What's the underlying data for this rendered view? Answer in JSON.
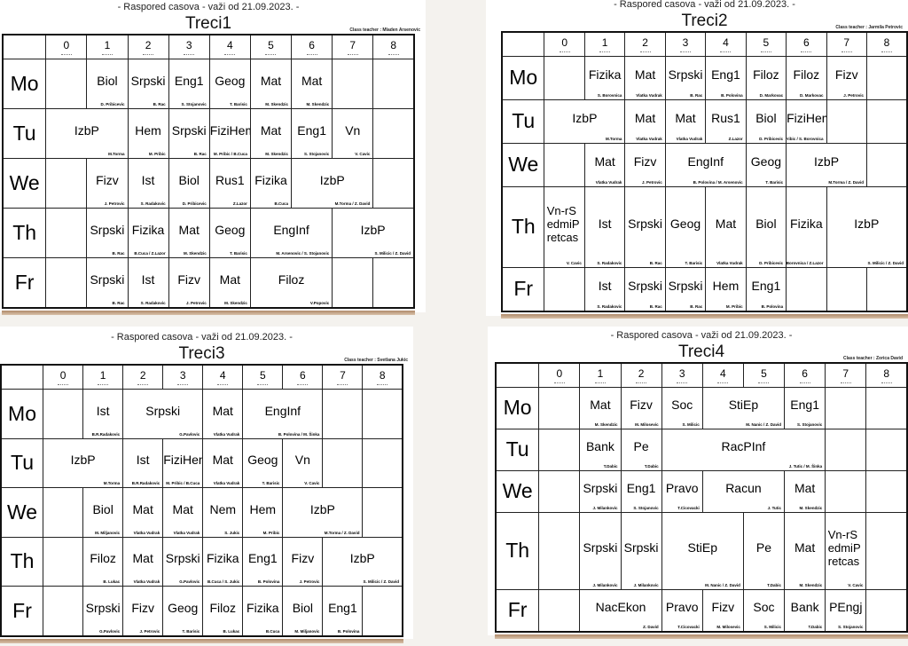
{
  "header_text": "-   Raspored casova - važi od 21.09.2023.   -",
  "class_teacher_prefix": "Class teacher : ",
  "periods": [
    "0",
    "1",
    "2",
    "3",
    "4",
    "5",
    "6",
    "7",
    "8"
  ],
  "days": [
    "Mo",
    "Tu",
    "We",
    "Th",
    "Fr"
  ],
  "timetables": [
    {
      "class_name": "Treci1",
      "class_teacher": "Mladen Arsenovic",
      "rows": [
        [
          [
            "",
            ""
          ],
          [
            "Biol",
            "D. Pribicevic"
          ],
          [
            "Srpski",
            "B. Rac"
          ],
          [
            "Eng1",
            "S. Stojanovic"
          ],
          [
            "Geog",
            "T. Barisic"
          ],
          [
            "Mat",
            "M. Skendzic"
          ],
          [
            "Mat",
            "M. Skendzic"
          ],
          [
            "",
            ""
          ],
          [
            "",
            ""
          ]
        ],
        [
          [
            "IzbP",
            "M.Torma",
            2
          ],
          [
            "Hem",
            "M. Pribic"
          ],
          [
            "Srpski",
            "B. Rac"
          ],
          [
            "FiziHemV",
            "M. Pribic / B.Cuca"
          ],
          [
            "Mat",
            "M. Skendzic"
          ],
          [
            "Eng1",
            "S. Stojanovic"
          ],
          [
            "Vn",
            "V. Cavic"
          ],
          [
            "",
            ""
          ]
        ],
        [
          [
            "",
            ""
          ],
          [
            "Fizv",
            "J. Petrovic"
          ],
          [
            "Ist",
            "S. Radakovic"
          ],
          [
            "Biol",
            "D. Pribicevic"
          ],
          [
            "Rus1",
            "Z.Lazor"
          ],
          [
            "Fizika",
            "B.Cuca"
          ],
          [
            "IzbP",
            "M.Torma / Z. David",
            2
          ],
          [
            "",
            ""
          ]
        ],
        [
          [
            "",
            ""
          ],
          [
            "Srpski",
            "B. Rac"
          ],
          [
            "Fizika",
            "B.Cuca / Z.Lazor"
          ],
          [
            "Mat",
            "M. Skendzic"
          ],
          [
            "Geog",
            "T. Barisic"
          ],
          [
            "EngInf",
            "M. Arsenovic / S. Stojanovic",
            2
          ],
          [
            "IzbP",
            "S. Milicic / Z. David",
            2
          ]
        ],
        [
          [
            "",
            ""
          ],
          [
            "Srpski",
            "B. Rac"
          ],
          [
            "Ist",
            "S. Radakovic"
          ],
          [
            "Fizv",
            "J. Petrovic"
          ],
          [
            "Mat",
            "M. Skendzic"
          ],
          [
            "Filoz",
            "V.Popovic",
            2
          ],
          [
            "",
            ""
          ],
          [
            "",
            ""
          ]
        ]
      ]
    },
    {
      "class_name": "Treci2",
      "class_teacher": "Jarmila Petrovic",
      "rows": [
        [
          [
            "",
            ""
          ],
          [
            "Fizika",
            "S. Borovnica"
          ],
          [
            "Mat",
            "Vlatka Vudrak"
          ],
          [
            "Srpski",
            "B. Rac"
          ],
          [
            "Eng1",
            "B. Polovina"
          ],
          [
            "Filoz",
            "D. Markovac"
          ],
          [
            "Filoz",
            "D. Markovac"
          ],
          [
            "Fizv",
            "J. Petrovic"
          ],
          [
            "",
            ""
          ]
        ],
        [
          [
            "IzbP",
            "M.Torma",
            2
          ],
          [
            "Mat",
            "Vlatka Vudrak"
          ],
          [
            "Mat",
            "Vlatka Vudrak"
          ],
          [
            "Rus1",
            "Z.Lazor"
          ],
          [
            "Biol",
            "D. Pribicevic"
          ],
          [
            "FiziHemV",
            "M. Pribic / S. Borovnica"
          ],
          [
            "",
            ""
          ],
          [
            "",
            ""
          ]
        ],
        [
          [
            "",
            ""
          ],
          [
            "Mat",
            "Vlatka Vudrak"
          ],
          [
            "Fizv",
            "J. Petrovic"
          ],
          [
            "EngInf",
            "B. Polovina / M. Arsenovic",
            2
          ],
          [
            "Geog",
            "T. Barisic"
          ],
          [
            "IzbP",
            "M.Torma / Z. David",
            2
          ],
          [
            "",
            ""
          ]
        ],
        [
          [
            "Vn-rSedmiPretcas",
            "V. Cavic"
          ],
          [
            "Ist",
            "S. Radakovic"
          ],
          [
            "Srpski",
            "B. Rac"
          ],
          [
            "Geog",
            "T. Barisic"
          ],
          [
            "Mat",
            "Vlatka Vudrak"
          ],
          [
            "Biol",
            "D. Pribicevic"
          ],
          [
            "Fizika",
            "S. Borovnica / Z.Lazor"
          ],
          [
            "IzbP",
            "S. Milicic / Z. David",
            2
          ]
        ],
        [
          [
            "",
            ""
          ],
          [
            "Ist",
            "S. Radakovic"
          ],
          [
            "Srpski",
            "B. Rac"
          ],
          [
            "Srpski",
            "B. Rac"
          ],
          [
            "Hem",
            "M. Pribic"
          ],
          [
            "Eng1",
            "B. Polovina"
          ],
          [
            "",
            ""
          ],
          [
            "",
            ""
          ],
          [
            "",
            ""
          ]
        ]
      ]
    },
    {
      "class_name": "Treci3",
      "class_teacher": "Svetlana Jukic",
      "rows": [
        [
          [
            "",
            ""
          ],
          [
            "Ist",
            "B.R.Radakovic"
          ],
          [
            "Srpski",
            "G.Pavlovic",
            2
          ],
          [
            "Mat",
            "Vlatka Vudrak"
          ],
          [
            "EngInf",
            "B. Polovina / M. Šinka",
            2
          ],
          [
            "",
            ""
          ],
          [
            "",
            ""
          ]
        ],
        [
          [
            "IzbP",
            "M.Torma",
            2
          ],
          [
            "Ist",
            "B.R.Radakovic"
          ],
          [
            "FiziHemV",
            "M. Pribic / B.Cuca"
          ],
          [
            "Mat",
            "Vlatka Vudrak"
          ],
          [
            "Geog",
            "T. Barisic"
          ],
          [
            "Vn",
            "V. Cavic"
          ],
          [
            "",
            ""
          ],
          [
            "",
            ""
          ]
        ],
        [
          [
            "",
            ""
          ],
          [
            "Biol",
            "M. Miljanovic"
          ],
          [
            "Mat",
            "Vlatka Vudrak"
          ],
          [
            "Mat",
            "Vlatka Vudrak"
          ],
          [
            "Nem",
            "S. Jukic"
          ],
          [
            "Hem",
            "M. Pribic"
          ],
          [
            "IzbP",
            "M.Torma / Z. David",
            2
          ],
          [
            "",
            ""
          ]
        ],
        [
          [
            "",
            ""
          ],
          [
            "Filoz",
            "B. Lukac"
          ],
          [
            "Mat",
            "Vlatka Vudrak"
          ],
          [
            "Srpski",
            "G.Pavlovic"
          ],
          [
            "Fizika",
            "B.Cuca / S. Jukic"
          ],
          [
            "Eng1",
            "B. Polovina"
          ],
          [
            "Fizv",
            "J. Petrovic"
          ],
          [
            "IzbP",
            "S. Milicic / Z. David",
            2
          ]
        ],
        [
          [
            "",
            ""
          ],
          [
            "Srpski",
            "G.Pavlovic"
          ],
          [
            "Fizv",
            "J. Petrovic"
          ],
          [
            "Geog",
            "T. Barisic"
          ],
          [
            "Filoz",
            "B. Lukac"
          ],
          [
            "Fizika",
            "B.Cuca"
          ],
          [
            "Biol",
            "M. Miljanovic"
          ],
          [
            "Eng1",
            "B. Polovina"
          ],
          [
            "",
            ""
          ]
        ]
      ]
    },
    {
      "class_name": "Treci4",
      "class_teacher": "Zorica David",
      "rows": [
        [
          [
            "",
            ""
          ],
          [
            "Mat",
            "M. Skendzic"
          ],
          [
            "Fizv",
            "M. Milosevic"
          ],
          [
            "Soc",
            "S. Milicic"
          ],
          [
            "StiEp",
            "M. Nanic / Z. David",
            2
          ],
          [
            "Eng1",
            "S. Stojanovic"
          ],
          [
            "",
            ""
          ],
          [
            "",
            ""
          ]
        ],
        [
          [
            "",
            ""
          ],
          [
            "Bank",
            "T.Dabic"
          ],
          [
            "Pe",
            "T.Dabic"
          ],
          [
            "RacPInf",
            "J. Tutic / M. Šinka",
            4
          ],
          [
            "",
            ""
          ],
          [
            "",
            ""
          ]
        ],
        [
          [
            "",
            ""
          ],
          [
            "Srpski",
            "J. Milankovic"
          ],
          [
            "Eng1",
            "S. Stojanovic"
          ],
          [
            "Pravo",
            "T.Cicovacki"
          ],
          [
            "Racun",
            "J. Tutic",
            2
          ],
          [
            "Mat",
            "M. Skendzic"
          ],
          [
            "",
            ""
          ],
          [
            "",
            ""
          ]
        ],
        [
          [
            "",
            ""
          ],
          [
            "Srpski",
            "J. Milankovic"
          ],
          [
            "Srpski",
            "J. Milankovic"
          ],
          [
            "StiEp",
            "M. Nanic / Z. David",
            2
          ],
          [
            "Pe",
            "T.Dabic"
          ],
          [
            "Mat",
            "M. Skendzic"
          ],
          [
            "Vn-rSedmiPretcas",
            "V. Cavic"
          ],
          [
            "",
            ""
          ]
        ],
        [
          [
            "",
            ""
          ],
          [
            "NacEkon",
            "Z. David",
            2
          ],
          [
            "Pravo",
            "T.Cicovacki"
          ],
          [
            "Fizv",
            "M. Milosevic"
          ],
          [
            "Soc",
            "S. Milicic"
          ],
          [
            "Bank",
            "T.Dabic"
          ],
          [
            "PEngj",
            "S. Stojanovic"
          ],
          [
            "",
            ""
          ]
        ]
      ]
    }
  ]
}
